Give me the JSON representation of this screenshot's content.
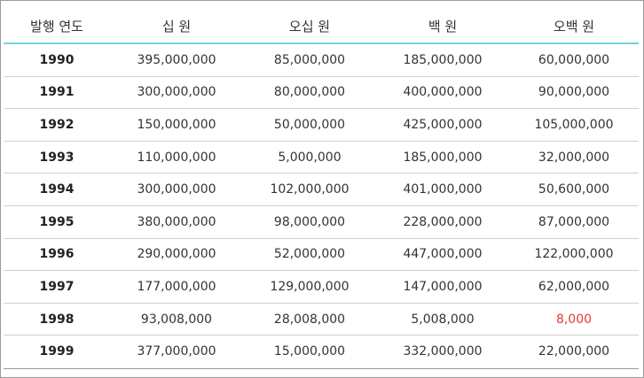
{
  "table": {
    "headers": [
      "발행 연도",
      "십 원",
      "오십 원",
      "백 원",
      "오백 원"
    ],
    "rows": [
      [
        "1990",
        "395,000,000",
        "85,000,000",
        "185,000,000",
        "60,000,000"
      ],
      [
        "1991",
        "300,000,000",
        "80,000,000",
        "400,000,000",
        "90,000,000"
      ],
      [
        "1992",
        "150,000,000",
        "50,000,000",
        "425,000,000",
        "105,000,000"
      ],
      [
        "1993",
        "110,000,000",
        "5,000,000",
        "185,000,000",
        "32,000,000"
      ],
      [
        "1994",
        "300,000,000",
        "102,000,000",
        "401,000,000",
        "50,600,000"
      ],
      [
        "1995",
        "380,000,000",
        "98,000,000",
        "228,000,000",
        "87,000,000"
      ],
      [
        "1996",
        "290,000,000",
        "52,000,000",
        "447,000,000",
        "122,000,000"
      ],
      [
        "1997",
        "177,000,000",
        "129,000,000",
        "147,000,000",
        "62,000,000"
      ],
      [
        "1998",
        "93,008,000",
        "28,008,000",
        "5,008,000",
        "8,000"
      ],
      [
        "1999",
        "377,000,000",
        "15,000,000",
        "332,000,000",
        "22,000,000"
      ]
    ]
  },
  "colors": {
    "header_underline": "#6fd3d8",
    "highlight_value": "#e53935",
    "row_divider": "#cfcfcf"
  }
}
